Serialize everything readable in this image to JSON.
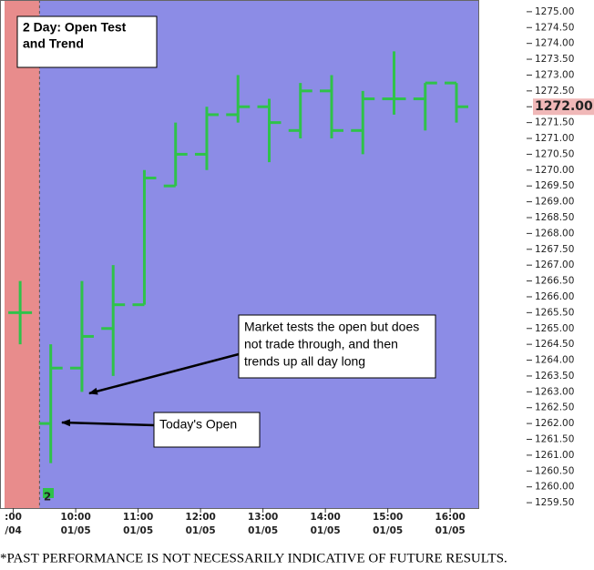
{
  "chart_data": {
    "type": "ohlc",
    "title": [
      "2 Day: Open Test",
      "and Trend"
    ],
    "footer": "*PAST PERFORMANCE IS NOT NECESSARILY INDICATIVE OF FUTURE RESULTS.",
    "annotations": [
      {
        "text": [
          "Market tests the open but does",
          "not trade through, and then",
          "trends up all day long"
        ]
      },
      {
        "text": [
          "Today's Open"
        ]
      }
    ],
    "marker_label": "2",
    "current_price": {
      "value": 1272,
      "label": "1272.00"
    },
    "x": [
      9.11,
      9.6,
      10.1,
      10.6,
      11.1,
      11.6,
      12.1,
      12.6,
      13.1,
      13.6,
      14.1,
      14.6,
      15.1,
      15.6,
      16.1
    ],
    "open": [
      1265.5,
      1262,
      1263.75,
      1265,
      1265.75,
      1269.5,
      1270.5,
      1271.75,
      1272,
      1271.25,
      1272.5,
      1271.25,
      1272.25,
      1272.25,
      1272.75
    ],
    "high": [
      1266.5,
      1264.5,
      1266.5,
      1267,
      1270,
      1271.5,
      1272,
      1273,
      1272.25,
      1272.75,
      1273,
      1272.5,
      1273.75,
      1272.75,
      1272.75
    ],
    "low": [
      1264.5,
      1260.75,
      1263,
      1263.5,
      1265.75,
      1269.5,
      1270,
      1271.5,
      1270.25,
      1271,
      1271,
      1270.5,
      1271.75,
      1271.25,
      1271.5
    ],
    "close": [
      1265.5,
      1263.75,
      1264.75,
      1265.75,
      1269.75,
      1270.5,
      1271.75,
      1272,
      1271.5,
      1272.5,
      1271.25,
      1272.25,
      1272.25,
      1272.75,
      1272
    ],
    "color": "#2fc24a",
    "background": "#8c8ce6",
    "shaded_region": {
      "from": 8.86,
      "to": 9.42,
      "color": "#e88c8c"
    },
    "xlim": [
      8.86,
      16.45
    ],
    "xticks": [
      {
        "value": 9,
        "label": [
          ":00",
          "/04"
        ]
      },
      {
        "value": 10,
        "label": [
          "10:00",
          "01/05"
        ]
      },
      {
        "value": 11,
        "label": [
          "11:00",
          "01/05"
        ]
      },
      {
        "value": 12,
        "label": [
          "12:00",
          "01/05"
        ]
      },
      {
        "value": 13,
        "label": [
          "13:00",
          "01/05"
        ]
      },
      {
        "value": 14,
        "label": [
          "14:00",
          "01/05"
        ]
      },
      {
        "value": 15,
        "label": [
          "15:00",
          "01/05"
        ]
      },
      {
        "value": 16,
        "label": [
          "16:00",
          "01/05"
        ]
      }
    ],
    "ylim": [
      1259.33,
      1275.37
    ],
    "yticks": [
      {
        "value": 1259.5,
        "label": "1259.50"
      },
      {
        "value": 1260,
        "label": "1260.00"
      },
      {
        "value": 1260.5,
        "label": "1260.50"
      },
      {
        "value": 1261,
        "label": "1261.00"
      },
      {
        "value": 1261.5,
        "label": "1261.50"
      },
      {
        "value": 1262,
        "label": "1262.00"
      },
      {
        "value": 1262.5,
        "label": "1262.50"
      },
      {
        "value": 1263,
        "label": "1263.00"
      },
      {
        "value": 1263.5,
        "label": "1263.50"
      },
      {
        "value": 1264,
        "label": "1264.00"
      },
      {
        "value": 1264.5,
        "label": "1264.50"
      },
      {
        "value": 1265,
        "label": "1265.00"
      },
      {
        "value": 1265.5,
        "label": "1265.50"
      },
      {
        "value": 1266,
        "label": "1266.00"
      },
      {
        "value": 1266.5,
        "label": "1266.50"
      },
      {
        "value": 1267,
        "label": "1267.00"
      },
      {
        "value": 1267.5,
        "label": "1267.50"
      },
      {
        "value": 1268,
        "label": "1268.00"
      },
      {
        "value": 1268.5,
        "label": "1268.50"
      },
      {
        "value": 1269,
        "label": "1269.00"
      },
      {
        "value": 1269.5,
        "label": "1269.50"
      },
      {
        "value": 1270,
        "label": "1270.00"
      },
      {
        "value": 1270.5,
        "label": "1270.50"
      },
      {
        "value": 1271,
        "label": "1271.00"
      },
      {
        "value": 1271.5,
        "label": "1271.50"
      },
      {
        "value": 1272,
        "label": "1272.00"
      },
      {
        "value": 1272.5,
        "label": "1272.50"
      },
      {
        "value": 1273,
        "label": "1273.00"
      },
      {
        "value": 1273.5,
        "label": "1273.50"
      },
      {
        "value": 1274,
        "label": "1274.00"
      },
      {
        "value": 1274.5,
        "label": "1274.50"
      },
      {
        "value": 1275,
        "label": "1275.00"
      }
    ]
  }
}
